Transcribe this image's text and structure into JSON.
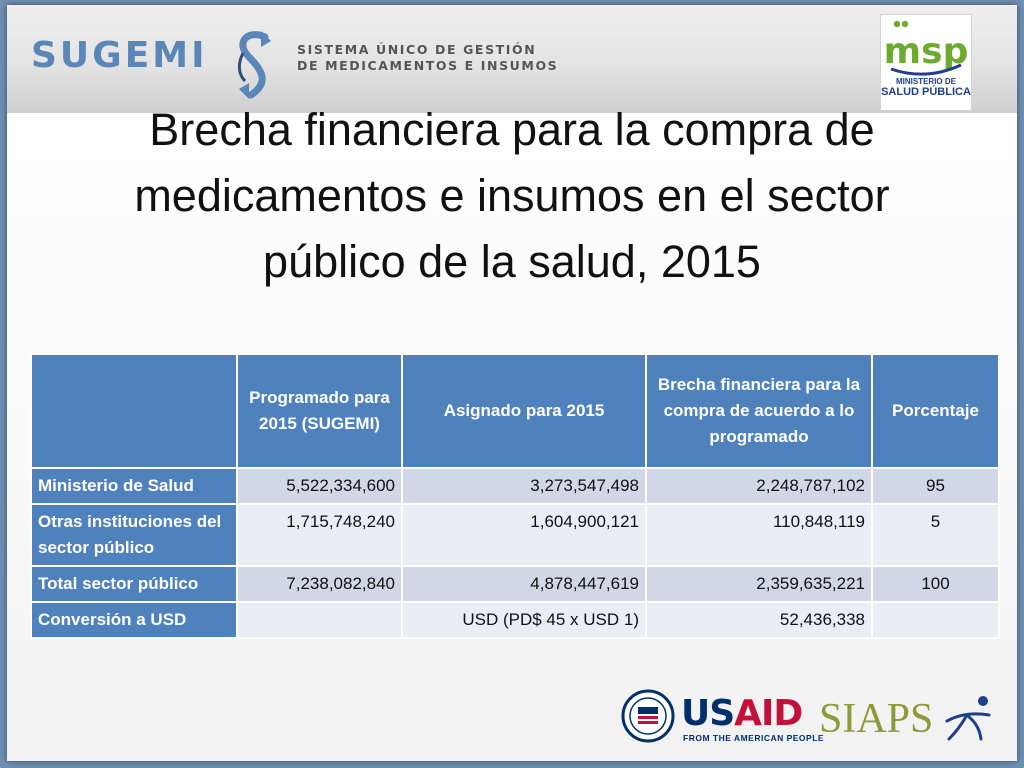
{
  "header": {
    "sugemi_wordmark": "SUGEMI",
    "sugemi_tagline_line1": "SISTEMA ÚNICO DE GESTIÓN",
    "sugemi_tagline_line2": "DE MEDICAMENTOS E INSUMOS",
    "msp_mark": "msp",
    "msp_caption_line1": "MINISTERIO DE",
    "msp_caption_line2": "SALUD PÚBLICA"
  },
  "slide": {
    "title_line1": "Brecha financiera para la compra de",
    "title_line2": "medicamentos e insumos en el sector",
    "title_line3": "público de la salud, 2015"
  },
  "table": {
    "headers": {
      "blank": "",
      "programado": "Programado para 2015 (SUGEMI)",
      "asignado": "Asignado para 2015",
      "brecha": "Brecha financiera para la compra de acuerdo a lo programado",
      "porcentaje": "Porcentaje"
    },
    "rows": [
      {
        "label": "Ministerio de Salud",
        "programado": "5,522,334,600",
        "asignado": "3,273,547,498",
        "brecha": "2,248,787,102",
        "porcentaje": "95"
      },
      {
        "label": "Otras instituciones del sector público",
        "programado": "1,715,748,240",
        "asignado": "1,604,900,121",
        "brecha": "110,848,119",
        "porcentaje": "5"
      },
      {
        "label": "Total sector público",
        "programado": "7,238,082,840",
        "asignado": "4,878,447,619",
        "brecha": "2,359,635,221",
        "porcentaje": "100"
      },
      {
        "label": "Conversión a USD",
        "programado": "",
        "asignado": "USD (PD$ 45 x USD 1)",
        "brecha": "52,436,338",
        "porcentaje": ""
      }
    ]
  },
  "footer": {
    "usaid_word_blue": "US",
    "usaid_word_red": "AID",
    "usaid_tagline": "FROM THE AMERICAN PEOPLE",
    "siaps_word": "SIAPS"
  },
  "colors": {
    "table_header": "#4f81bd",
    "row_band_dark": "#d0d8e8",
    "row_band_light": "#e9edf4",
    "sugemi_blue": "#5a86b8",
    "msp_green": "#6cab2f",
    "msp_blue": "#1f3f8a",
    "usaid_blue": "#002f6c",
    "usaid_red": "#c2113a",
    "siaps_olive": "#8d9a3a"
  }
}
